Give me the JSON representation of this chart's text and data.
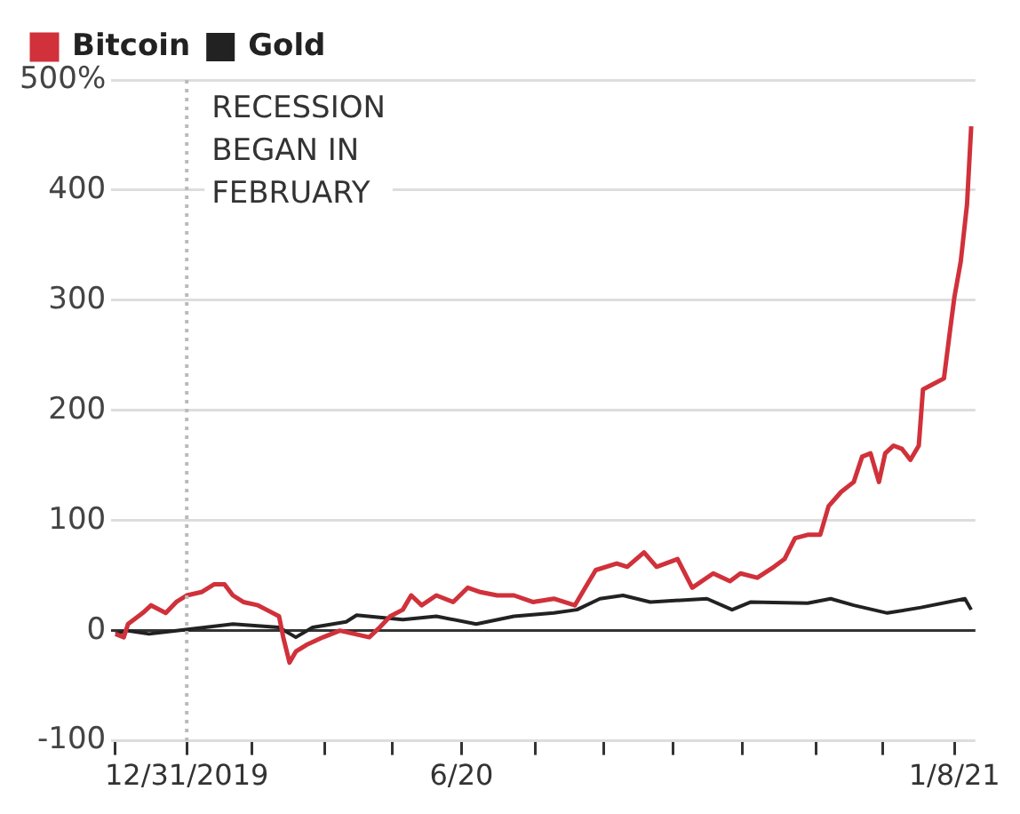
{
  "chart_data": {
    "type": "line",
    "legend": "top left",
    "grid": "y",
    "marker": "none",
    "line_style": "solid",
    "xlim": [
      "2019-11-25",
      "2021-01-10"
    ],
    "xticks": [
      {
        "value": "2019-11-27",
        "label": null
      },
      {
        "value": "2019-12-31",
        "label": "12/31/2019"
      },
      {
        "value": "2020-01-31",
        "label": null
      },
      {
        "value": "2020-03-06",
        "label": null
      },
      {
        "value": "2020-04-07",
        "label": null
      },
      {
        "value": "2020-05-10",
        "label": "6/20"
      },
      {
        "value": "2020-06-14",
        "label": null
      },
      {
        "value": "2020-07-17",
        "label": null
      },
      {
        "value": "2020-08-19",
        "label": null
      },
      {
        "value": "2020-09-21",
        "label": null
      },
      {
        "value": "2020-10-26",
        "label": null
      },
      {
        "value": "2020-11-27",
        "label": null
      },
      {
        "value": "2020-12-31",
        "label": "1/8/21"
      }
    ],
    "ylim": [
      -100,
      500
    ],
    "yticks": [
      -100,
      0,
      100,
      200,
      300,
      400,
      {
        "value": 500,
        "label": "500%"
      }
    ],
    "ref_lines": [
      {
        "axis": "x",
        "value": "2019-12-31",
        "label": "RECESSION BEGAN IN FEBRUARY",
        "color": "#bbbbbb",
        "line_style": "dotted"
      }
    ],
    "series": [
      {
        "name": "Bitcoin",
        "color": "#d0313a",
        "x": [
          "2019-11-27",
          "2019-12-01",
          "2019-12-03",
          "2019-12-10",
          "2019-12-14",
          "2019-12-21",
          "2019-12-26",
          "2019-12-31",
          "2020-01-07",
          "2020-01-13",
          "2020-01-18",
          "2020-01-22",
          "2020-01-27",
          "2020-02-03",
          "2020-02-07",
          "2020-02-13",
          "2020-02-15",
          "2020-02-18",
          "2020-02-21",
          "2020-02-26",
          "2020-03-05",
          "2020-03-13",
          "2020-03-20",
          "2020-03-27",
          "2020-04-01",
          "2020-04-06",
          "2020-04-12",
          "2020-04-16",
          "2020-04-21",
          "2020-04-28",
          "2020-05-06",
          "2020-05-13",
          "2020-05-19",
          "2020-05-27",
          "2020-06-04",
          "2020-06-13",
          "2020-06-23",
          "2020-07-03",
          "2020-07-08",
          "2020-07-13",
          "2020-07-23",
          "2020-07-28",
          "2020-08-05",
          "2020-08-11",
          "2020-08-21",
          "2020-08-28",
          "2020-09-07",
          "2020-09-15",
          "2020-09-20",
          "2020-09-28",
          "2020-10-06",
          "2020-10-11",
          "2020-10-16",
          "2020-10-22",
          "2020-10-28",
          "2020-11-01",
          "2020-11-07",
          "2020-11-13",
          "2020-11-17",
          "2020-11-21",
          "2020-11-25",
          "2020-11-28",
          "2020-12-02",
          "2020-12-06",
          "2020-12-10",
          "2020-12-14",
          "2020-12-16",
          "2020-12-20",
          "2020-12-26",
          "2020-12-29",
          "2020-12-31",
          "2021-01-03",
          "2021-01-06",
          "2021-01-08"
        ],
        "values": [
          -3,
          -6,
          6,
          16,
          23,
          16,
          26,
          32,
          35,
          42,
          42,
          32,
          26,
          23,
          19,
          13,
          -6,
          -29,
          -19,
          -13,
          -6,
          0,
          -3,
          -6,
          3,
          13,
          19,
          32,
          23,
          32,
          26,
          39,
          35,
          32,
          32,
          26,
          29,
          23,
          39,
          55,
          61,
          58,
          71,
          58,
          65,
          39,
          52,
          45,
          52,
          48,
          58,
          65,
          84,
          87,
          87,
          113,
          126,
          135,
          158,
          161,
          135,
          161,
          168,
          165,
          155,
          168,
          219,
          223,
          229,
          274,
          303,
          335,
          387,
          458
        ]
      },
      {
        "name": "Gold",
        "color": "#222222",
        "x": [
          "2019-11-27",
          "2019-12-03",
          "2019-12-13",
          "2019-12-26",
          "2020-01-22",
          "2020-02-13",
          "2020-02-21",
          "2020-02-29",
          "2020-03-16",
          "2020-03-21",
          "2020-04-12",
          "2020-04-28",
          "2020-05-17",
          "2020-06-04",
          "2020-06-23",
          "2020-07-04",
          "2020-07-15",
          "2020-07-26",
          "2020-08-08",
          "2020-09-04",
          "2020-09-16",
          "2020-09-25",
          "2020-10-22",
          "2020-11-02",
          "2020-11-13",
          "2020-11-29",
          "2020-12-15",
          "2021-01-05",
          "2021-01-08"
        ],
        "values": [
          -3,
          0,
          -3,
          0,
          6,
          3,
          -6,
          3,
          8,
          14,
          10,
          13,
          6,
          13,
          16,
          19,
          29,
          32,
          26,
          29,
          19,
          26,
          25,
          29,
          23,
          16,
          21,
          29,
          19
        ]
      }
    ]
  }
}
